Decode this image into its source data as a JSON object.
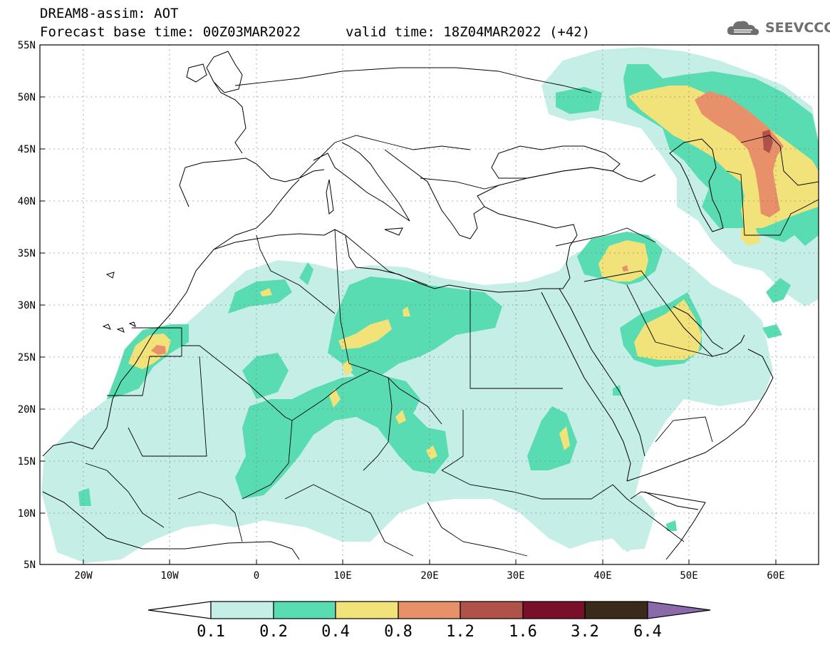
{
  "header": {
    "title": "DREAM8-assim: AOT",
    "base_time": "Forecast base time: 00Z03MAR2022",
    "valid_time": "valid time: 18Z04MAR2022 (+42)"
  },
  "logo": {
    "text": "SEEVCCC",
    "icon": "cloud-logo-icon"
  },
  "map": {
    "lon_range": [
      -25,
      65
    ],
    "lat_range": [
      5,
      55
    ],
    "lat_ticks": [
      "55N",
      "50N",
      "45N",
      "40N",
      "35N",
      "30N",
      "25N",
      "20N",
      "15N",
      "10N",
      "5N"
    ],
    "lon_ticks": [
      "20W",
      "10W",
      "0",
      "10E",
      "20E",
      "30E",
      "40E",
      "50E",
      "60E"
    ],
    "gridlines": "dotted",
    "coastlines": true,
    "country_borders": true
  },
  "colorbar": {
    "labels": [
      "0.1",
      "0.2",
      "0.4",
      "0.8",
      "1.2",
      "1.6",
      "3.2",
      "6.4"
    ],
    "colors": [
      "#ffffff",
      "#c4eee6",
      "#5adcb2",
      "#f2e27a",
      "#e8906a",
      "#b0524a",
      "#7a0f2a",
      "#3a2a1a",
      "#8a6aa8"
    ]
  },
  "aot_colors": {
    "light": "#c4eee6",
    "green": "#5adcb2",
    "yellow": "#f2e27a",
    "orange": "#e8906a",
    "brown": "#b0524a"
  }
}
